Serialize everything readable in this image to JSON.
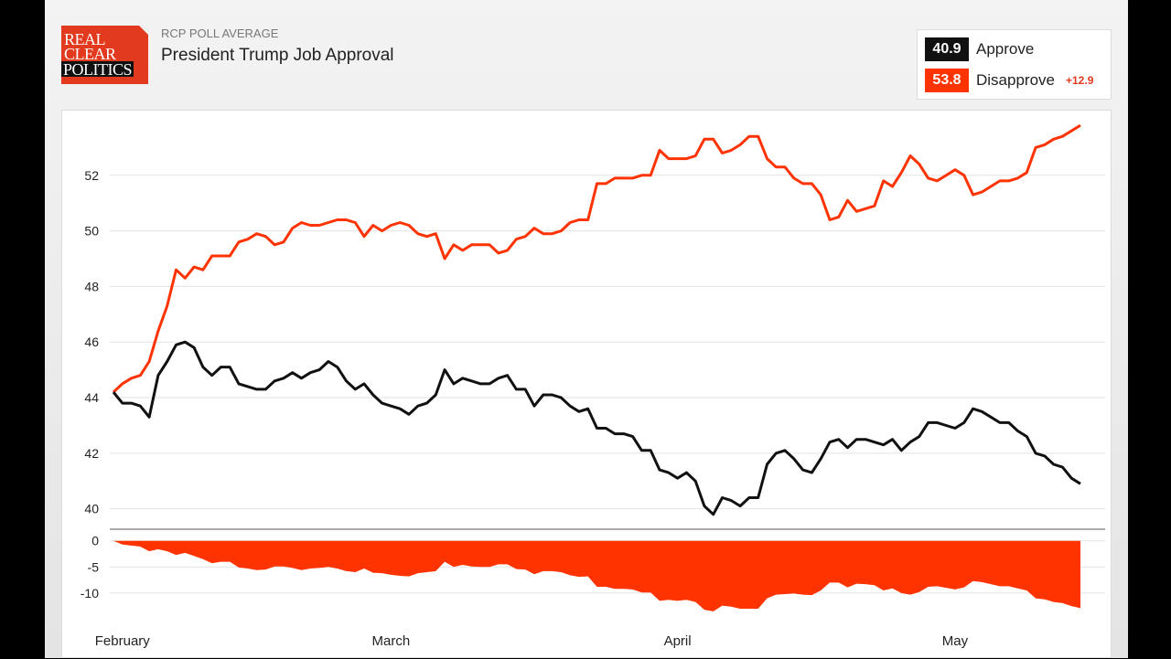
{
  "header": {
    "logo": [
      "REAL",
      "CLEAR",
      "POLITICS"
    ],
    "subtitle": "RCP POLL AVERAGE",
    "title": "President Trump Job Approval"
  },
  "legend": {
    "approve": {
      "value": "40.9",
      "label": "Approve"
    },
    "disapprove": {
      "value": "53.8",
      "label": "Disapprove"
    },
    "spread": "+12.9"
  },
  "colors": {
    "approve": "#111111",
    "disapprove": "#ff3300",
    "spread": "#ff3300"
  },
  "chart_data": {
    "type": "line",
    "x_axis": {
      "labels": [
        "February",
        "March",
        "April",
        "May"
      ],
      "label_positions": [
        1,
        31,
        63,
        94
      ]
    },
    "y_axis": {
      "ticks": [
        40,
        42,
        44,
        46,
        48,
        50,
        52
      ],
      "ylim": [
        39.2,
        54
      ]
    },
    "lower_axis": {
      "type": "area",
      "ticks": [
        0,
        -5,
        -10
      ],
      "ylim": [
        -13,
        1
      ]
    },
    "grid": true,
    "series": [
      {
        "name": "Approve",
        "values": [
          44.2,
          43.8,
          43.8,
          43.7,
          43.3,
          44.8,
          45.3,
          45.9,
          46.0,
          45.8,
          45.1,
          44.8,
          45.1,
          45.1,
          44.5,
          44.4,
          44.3,
          44.3,
          44.6,
          44.7,
          44.9,
          44.7,
          44.9,
          45.0,
          45.3,
          45.1,
          44.6,
          44.3,
          44.5,
          44.1,
          43.8,
          43.7,
          43.6,
          43.4,
          43.7,
          43.8,
          44.1,
          45.0,
          44.5,
          44.7,
          44.6,
          44.5,
          44.5,
          44.7,
          44.8,
          44.3,
          44.3,
          43.7,
          44.1,
          44.1,
          44.0,
          43.7,
          43.5,
          43.6,
          42.9,
          42.9,
          42.7,
          42.7,
          42.6,
          42.1,
          42.1,
          41.4,
          41.3,
          41.1,
          41.3,
          41.0,
          40.1,
          39.8,
          40.4,
          40.3,
          40.1,
          40.4,
          40.4,
          41.6,
          42.0,
          42.1,
          41.8,
          41.4,
          41.3,
          41.8,
          42.4,
          42.5,
          42.2,
          42.5,
          42.5,
          42.4,
          42.3,
          42.5,
          42.1,
          42.4,
          42.6,
          43.1,
          43.1,
          43.0,
          42.9,
          43.1,
          43.6,
          43.5,
          43.3,
          43.1,
          43.1,
          42.8,
          42.6,
          42.0,
          41.9,
          41.6,
          41.5,
          41.1,
          40.9
        ]
      },
      {
        "name": "Disapprove",
        "values": [
          44.2,
          44.5,
          44.7,
          44.8,
          45.3,
          46.4,
          47.3,
          48.6,
          48.3,
          48.7,
          48.6,
          49.1,
          49.1,
          49.1,
          49.6,
          49.7,
          49.9,
          49.8,
          49.5,
          49.6,
          50.1,
          50.3,
          50.2,
          50.2,
          50.3,
          50.4,
          50.4,
          50.3,
          49.8,
          50.2,
          50.0,
          50.2,
          50.3,
          50.2,
          49.9,
          49.8,
          49.9,
          49.0,
          49.5,
          49.3,
          49.5,
          49.5,
          49.5,
          49.2,
          49.3,
          49.7,
          49.8,
          50.1,
          49.9,
          49.9,
          50.0,
          50.3,
          50.4,
          50.4,
          51.7,
          51.7,
          51.9,
          51.9,
          51.9,
          52.0,
          52.0,
          52.9,
          52.6,
          52.6,
          52.6,
          52.7,
          53.3,
          53.3,
          52.8,
          52.9,
          53.1,
          53.4,
          53.4,
          52.6,
          52.3,
          52.3,
          51.9,
          51.7,
          51.7,
          51.3,
          50.4,
          50.5,
          51.1,
          50.7,
          50.8,
          50.9,
          51.8,
          51.6,
          52.1,
          52.7,
          52.4,
          51.9,
          51.8,
          52.0,
          52.2,
          52.0,
          51.3,
          51.4,
          51.6,
          51.8,
          51.8,
          51.9,
          52.1,
          53.0,
          53.1,
          53.3,
          53.4,
          53.6,
          53.8
        ]
      },
      {
        "name": "Spread",
        "values": [
          0.0,
          -0.7,
          -0.9,
          -1.1,
          -2.0,
          -1.6,
          -2.0,
          -2.7,
          -2.3,
          -2.9,
          -3.5,
          -4.3,
          -4.0,
          -4.0,
          -5.1,
          -5.3,
          -5.6,
          -5.5,
          -4.9,
          -4.9,
          -5.2,
          -5.6,
          -5.3,
          -5.2,
          -5.0,
          -5.3,
          -5.8,
          -6.0,
          -5.3,
          -6.1,
          -6.2,
          -6.5,
          -6.7,
          -6.8,
          -6.2,
          -6.0,
          -5.8,
          -4.0,
          -5.0,
          -4.6,
          -4.9,
          -5.0,
          -5.0,
          -4.5,
          -4.5,
          -5.4,
          -5.5,
          -6.4,
          -5.8,
          -5.8,
          -6.0,
          -6.6,
          -6.9,
          -6.8,
          -8.8,
          -8.8,
          -9.2,
          -9.2,
          -9.3,
          -9.9,
          -9.9,
          -11.5,
          -11.3,
          -11.5,
          -11.3,
          -11.7,
          -13.2,
          -13.5,
          -12.4,
          -12.6,
          -13.0,
          -13.0,
          -13.0,
          -11.0,
          -10.3,
          -10.2,
          -10.1,
          -10.3,
          -10.4,
          -9.5,
          -8.0,
          -8.0,
          -8.9,
          -8.2,
          -8.3,
          -8.5,
          -9.5,
          -9.1,
          -10.0,
          -10.3,
          -9.8,
          -8.8,
          -8.7,
          -9.0,
          -9.3,
          -8.9,
          -7.7,
          -7.9,
          -8.3,
          -8.7,
          -8.7,
          -9.1,
          -9.5,
          -11.0,
          -11.2,
          -11.7,
          -11.9,
          -12.5,
          -12.9
        ]
      }
    ]
  }
}
